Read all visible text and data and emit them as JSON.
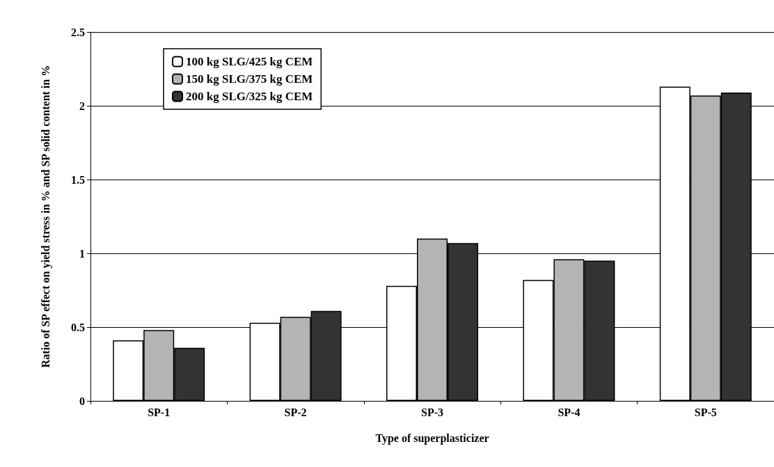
{
  "chart_data": {
    "type": "bar",
    "xlabel": "Type of superplasticizer",
    "ylabel": "Ratio of SP effect on yield stress in % and SP solid content in %",
    "categories": [
      "SP-1",
      "SP-2",
      "SP-3",
      "SP-4",
      "SP-5"
    ],
    "series": [
      {
        "name": "100 kg SLG/425 kg CEM",
        "color": "#ffffff",
        "values": [
          0.41,
          0.53,
          0.78,
          0.82,
          2.13
        ]
      },
      {
        "name": "150 kg SLG/375 kg CEM",
        "color": "#b4b4b4",
        "values": [
          0.48,
          0.57,
          1.1,
          0.96,
          2.07
        ]
      },
      {
        "name": "200 kg SLG/325 kg CEM",
        "color": "#333333",
        "values": [
          0.36,
          0.61,
          1.07,
          0.95,
          2.09
        ]
      }
    ],
    "ylim": [
      0,
      2.5
    ],
    "yticks": [
      0,
      0.5,
      1,
      1.5,
      2,
      2.5
    ],
    "grid": "y",
    "legend": "top left"
  }
}
